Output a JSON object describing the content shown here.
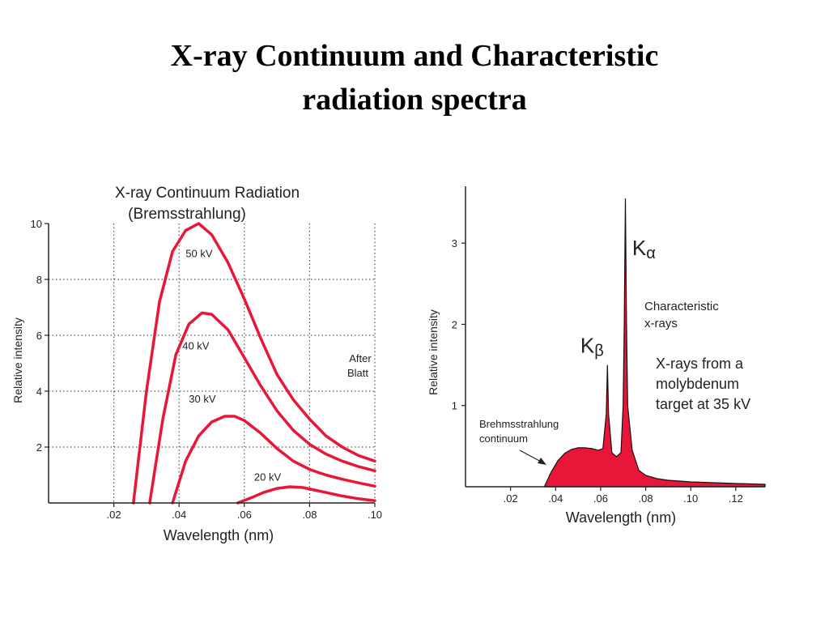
{
  "title": {
    "line1": "X-ray Continuum and Characteristic",
    "line2": "radiation spectra"
  },
  "colors": {
    "curve": "#e8173a",
    "fill": "#e8173a",
    "axis": "#222222",
    "grid": "#555555"
  },
  "chart_data": [
    {
      "type": "line",
      "title": "X-ray Continuum Radiation",
      "subtitle": "(Bremsstrahlung)",
      "xlabel": "Wavelength (nm)",
      "ylabel": "Relative intensity",
      "xlim": [
        0,
        0.1
      ],
      "ylim": [
        0,
        10
      ],
      "xticks": [
        0.02,
        0.04,
        0.06,
        0.08,
        0.1
      ],
      "xtick_labels": [
        ".02",
        ".04",
        ".06",
        ".08",
        ".10"
      ],
      "yticks": [
        2,
        4,
        6,
        8,
        10
      ],
      "ytick_labels": [
        "2",
        "4",
        "6",
        "8",
        "10"
      ],
      "grid": "dotted",
      "annotation": {
        "line1": "After",
        "line2": "Blatt"
      },
      "series": [
        {
          "name": "50 kV",
          "x": [
            0.026,
            0.03,
            0.034,
            0.038,
            0.042,
            0.046,
            0.05,
            0.055,
            0.06,
            0.065,
            0.07,
            0.075,
            0.08,
            0.085,
            0.09,
            0.095,
            0.1
          ],
          "y": [
            0,
            4.0,
            7.2,
            9.0,
            9.75,
            10.0,
            9.6,
            8.6,
            7.3,
            5.9,
            4.6,
            3.7,
            3.0,
            2.4,
            2.0,
            1.7,
            1.5
          ]
        },
        {
          "name": "40 kV",
          "x": [
            0.031,
            0.035,
            0.039,
            0.043,
            0.047,
            0.05,
            0.055,
            0.06,
            0.065,
            0.07,
            0.075,
            0.08,
            0.085,
            0.09,
            0.095,
            0.1
          ],
          "y": [
            0,
            3.0,
            5.3,
            6.4,
            6.8,
            6.75,
            6.2,
            5.2,
            4.2,
            3.3,
            2.6,
            2.1,
            1.75,
            1.5,
            1.3,
            1.15
          ]
        },
        {
          "name": "30 kV",
          "x": [
            0.038,
            0.042,
            0.046,
            0.05,
            0.054,
            0.057,
            0.06,
            0.065,
            0.07,
            0.075,
            0.08,
            0.085,
            0.09,
            0.095,
            0.1
          ],
          "y": [
            0,
            1.5,
            2.4,
            2.9,
            3.1,
            3.1,
            2.95,
            2.5,
            1.95,
            1.5,
            1.2,
            1.0,
            0.85,
            0.72,
            0.6
          ]
        },
        {
          "name": "20 kV",
          "x": [
            0.058,
            0.062,
            0.066,
            0.07,
            0.074,
            0.078,
            0.082,
            0.086,
            0.09,
            0.095,
            0.1
          ],
          "y": [
            0,
            0.18,
            0.38,
            0.52,
            0.58,
            0.55,
            0.45,
            0.35,
            0.25,
            0.15,
            0.08
          ]
        }
      ],
      "series_label_at": [
        [
          0.042,
          8.8
        ],
        [
          0.041,
          5.5
        ],
        [
          0.043,
          3.6
        ],
        [
          0.063,
          0.8
        ]
      ]
    },
    {
      "type": "area",
      "title": "",
      "xlabel": "Wavelength (nm)",
      "ylabel": "Relative intensity",
      "xlim": [
        0,
        0.133
      ],
      "ylim": [
        0,
        3.7
      ],
      "xticks": [
        0.02,
        0.04,
        0.06,
        0.08,
        0.1,
        0.12
      ],
      "xtick_labels": [
        ".02",
        ".04",
        ".06",
        ".08",
        ".10",
        ".12"
      ],
      "yticks": [
        1,
        2,
        3
      ],
      "ytick_labels": [
        "1",
        "2",
        "3"
      ],
      "grid": "none",
      "peaks": [
        {
          "name": "Kα",
          "base": "K",
          "sub": "α",
          "x": 0.071,
          "y": 3.55,
          "label_at": [
            0.074,
            2.85
          ]
        },
        {
          "name": "Kβ",
          "base": "K",
          "sub": "β",
          "x": 0.063,
          "y": 1.5,
          "label_at": [
            0.051,
            1.65
          ]
        }
      ],
      "x": [
        0.035,
        0.038,
        0.041,
        0.044,
        0.047,
        0.05,
        0.053,
        0.056,
        0.059,
        0.061,
        0.0625,
        0.063,
        0.0635,
        0.065,
        0.067,
        0.069,
        0.07,
        0.0705,
        0.071,
        0.0715,
        0.072,
        0.074,
        0.077,
        0.08,
        0.085,
        0.09,
        0.1,
        0.11,
        0.12,
        0.133
      ],
      "y": [
        0,
        0.18,
        0.32,
        0.41,
        0.46,
        0.48,
        0.48,
        0.47,
        0.45,
        0.47,
        0.9,
        1.5,
        0.9,
        0.42,
        0.37,
        0.42,
        1.0,
        2.0,
        3.55,
        2.0,
        1.0,
        0.45,
        0.2,
        0.14,
        0.1,
        0.08,
        0.06,
        0.05,
        0.04,
        0.03
      ],
      "annotations": {
        "characteristic": {
          "line1": "Characteristic",
          "line2": "x-rays"
        },
        "target": {
          "line1": "X-rays from a",
          "line2": "molybdenum",
          "line3": "target at 35 kV"
        },
        "continuum": {
          "line1": "Brehmsstrahlung",
          "line2": "continuum"
        }
      }
    }
  ]
}
